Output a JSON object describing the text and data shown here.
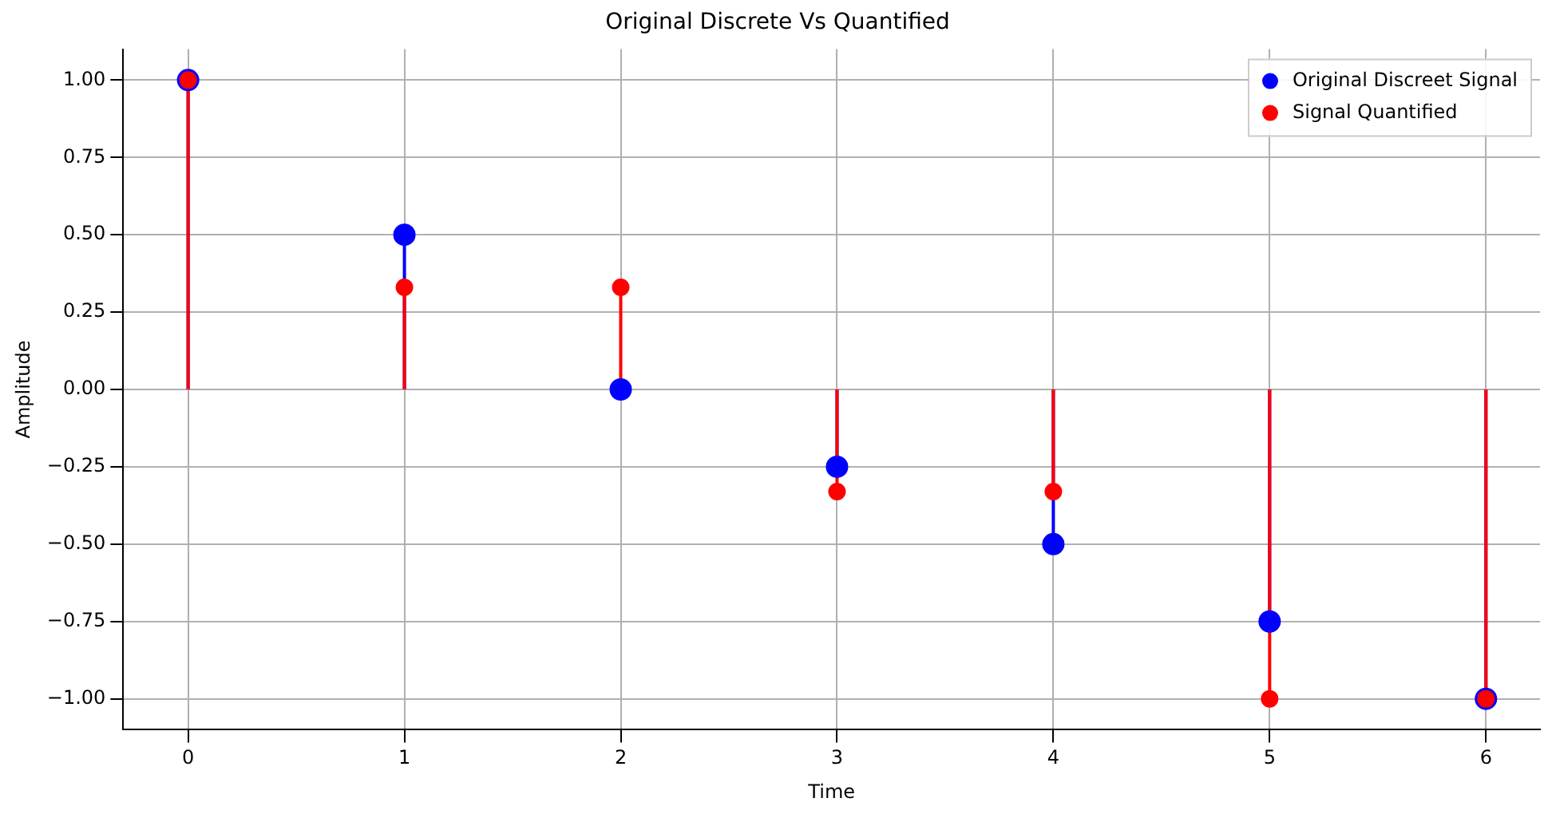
{
  "chart_data": {
    "type": "lollipop",
    "title": "Original Discrete Vs Quantified",
    "xlabel": "Time",
    "ylabel": "Amplitude",
    "x": [
      0,
      1,
      2,
      3,
      4,
      5,
      6
    ],
    "series": [
      {
        "name": "Original Discreet Signal",
        "color": "#0000ff",
        "values": [
          1,
          0.5,
          0,
          -0.25,
          -0.5,
          -0.75,
          -1
        ]
      },
      {
        "name": "Signal Quantified",
        "color": "#ff0000",
        "values": [
          1,
          0.33,
          0.33,
          -0.33,
          -0.33,
          -1,
          -1
        ]
      }
    ],
    "xlim": [
      -0.3,
      6.25
    ],
    "xticks": [
      0,
      1,
      2,
      3,
      4,
      5,
      6
    ],
    "ylim": [
      -1.1,
      1.1
    ],
    "yticks": [
      {
        "value": -1,
        "label": "−1.00"
      },
      {
        "value": -0.75,
        "label": "−0.75"
      },
      {
        "value": -0.5,
        "label": "−0.50"
      },
      {
        "value": -0.25,
        "label": "−0.25"
      },
      {
        "value": 0,
        "label": "0.00"
      },
      {
        "value": 0.25,
        "label": "0.25"
      },
      {
        "value": 0.5,
        "label": "0.50"
      },
      {
        "value": 0.75,
        "label": "0.75"
      },
      {
        "value": 1,
        "label": "1.00"
      }
    ],
    "grid": true,
    "legend": "top right",
    "marker": "circle"
  }
}
